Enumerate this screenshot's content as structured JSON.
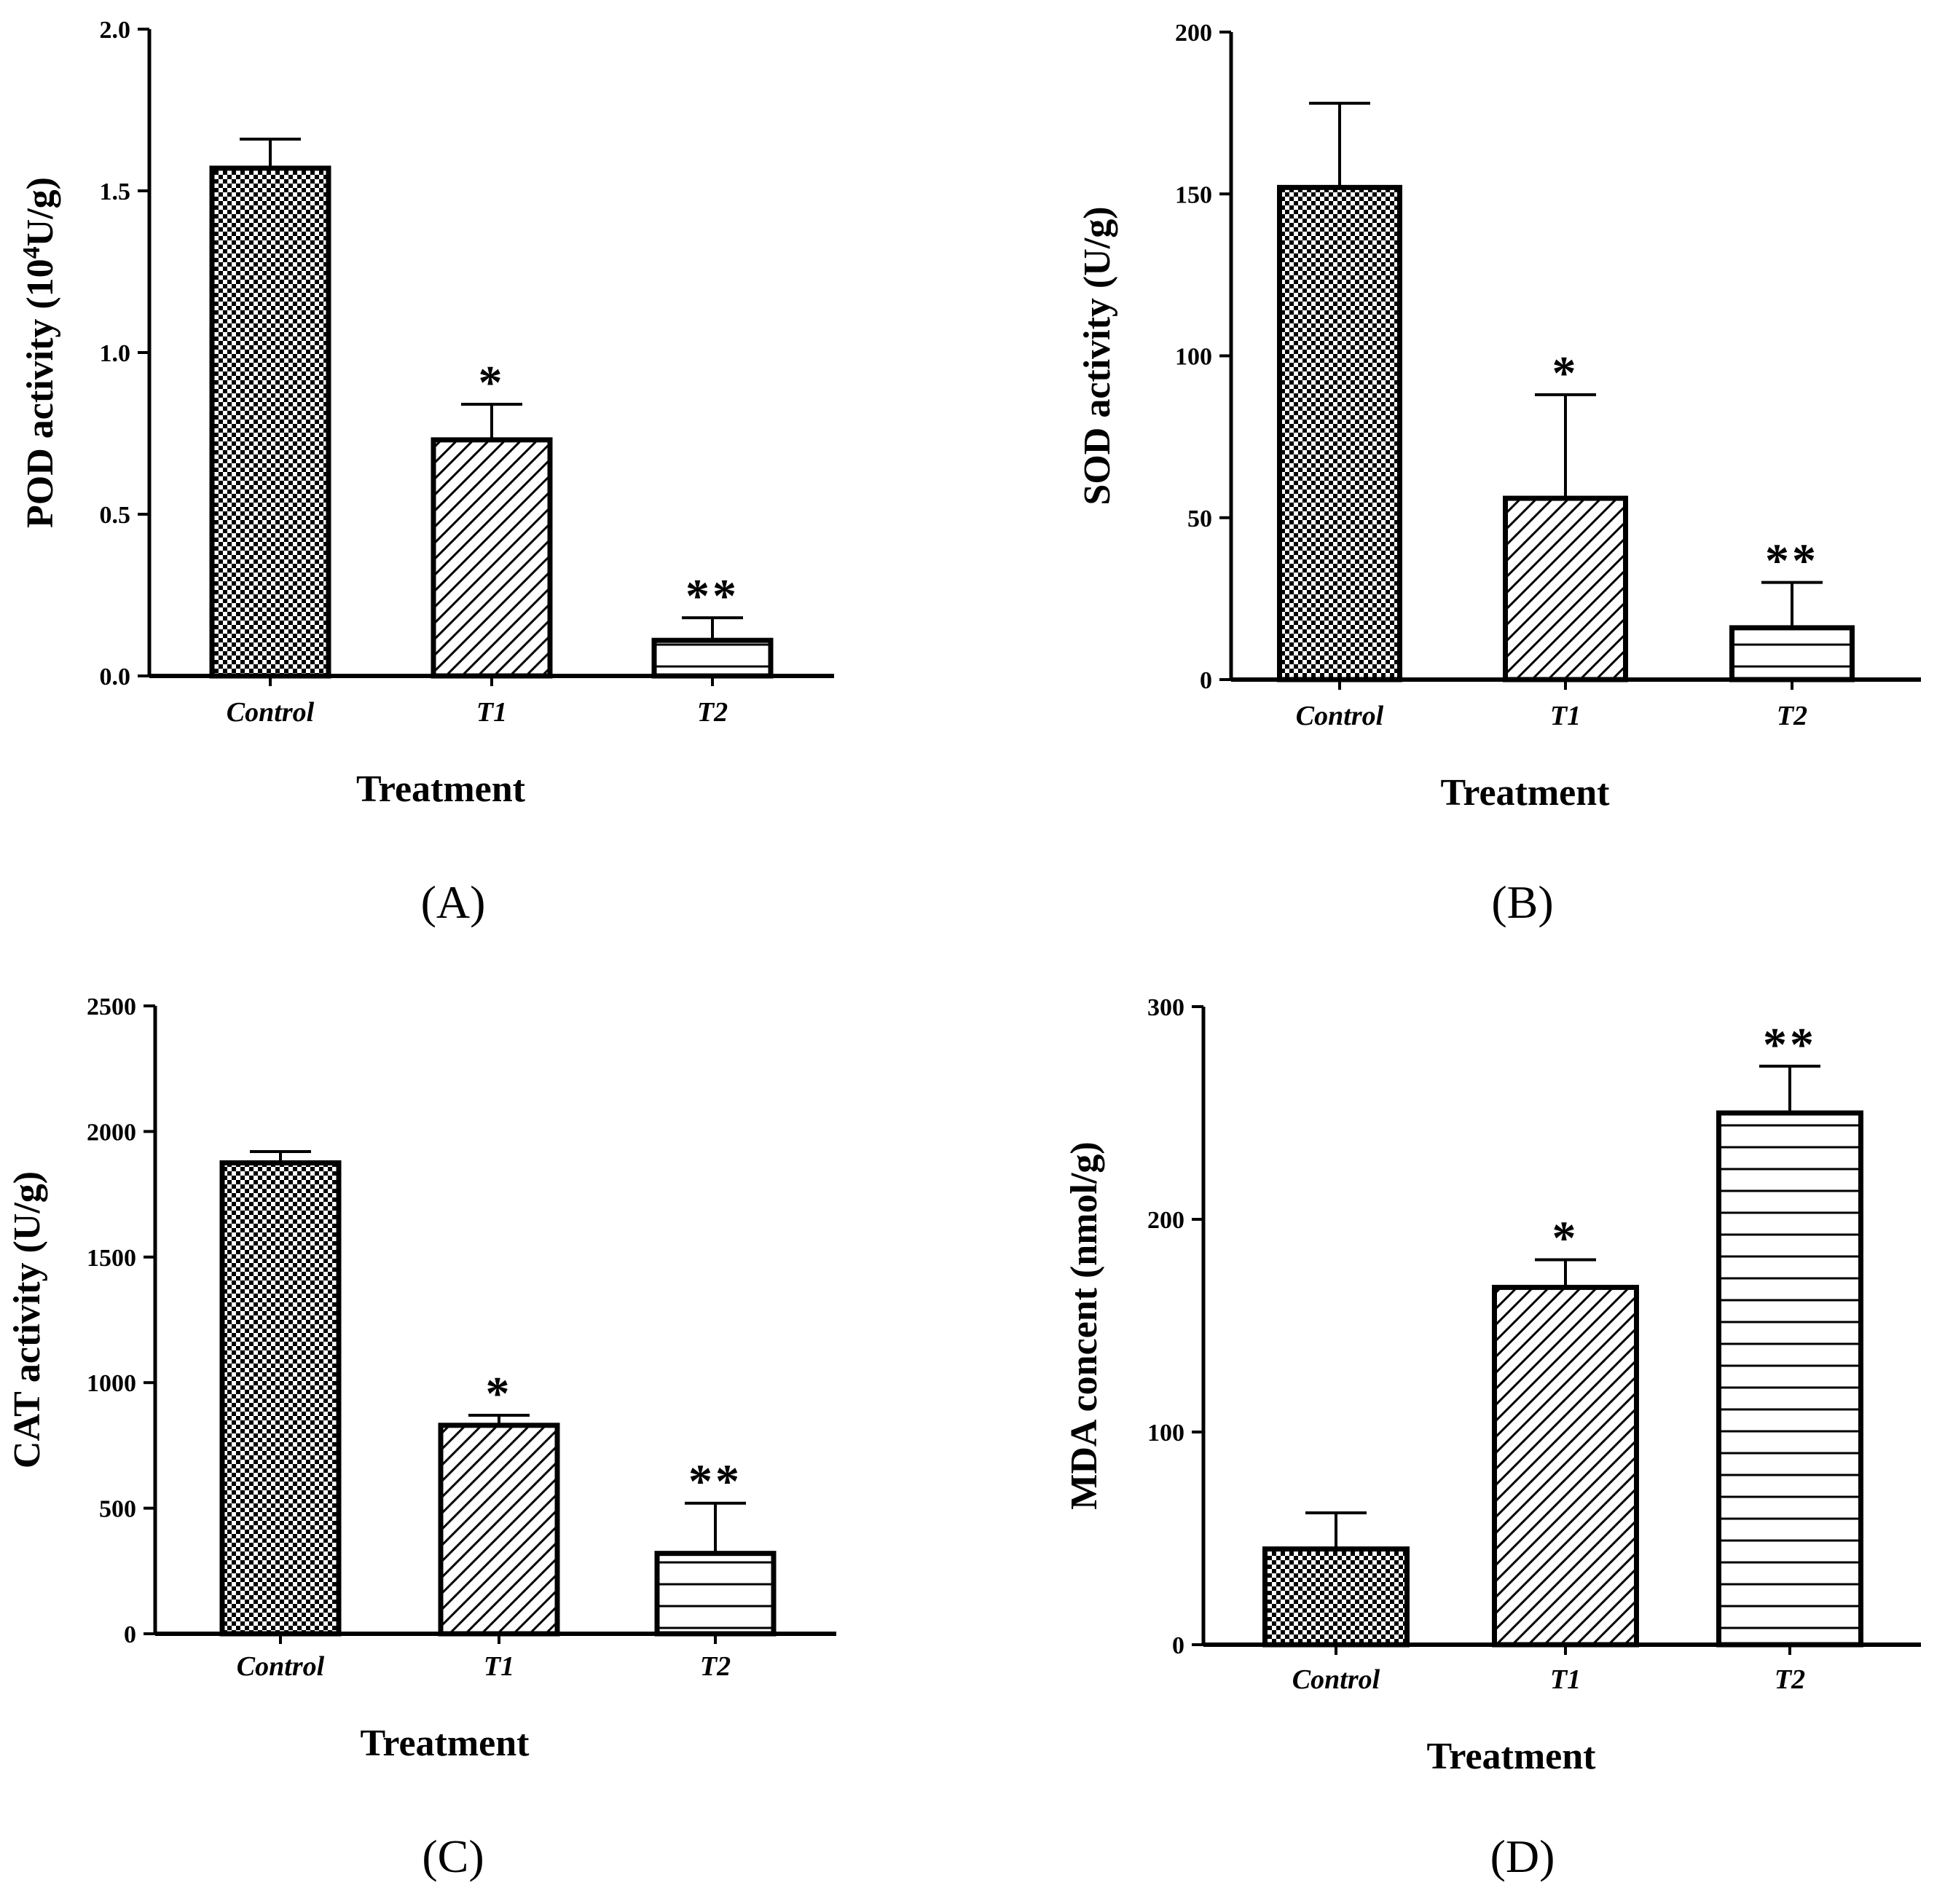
{
  "chart_data": [
    {
      "type": "bar",
      "panel_label": "(A)",
      "categories": [
        "Control",
        "T1",
        "T2"
      ],
      "values": [
        1.57,
        0.73,
        0.11
      ],
      "errors": [
        0.09,
        0.11,
        0.07
      ],
      "significance": [
        "",
        "*",
        "**"
      ],
      "patterns": [
        "checker",
        "diagonal",
        "horizontal"
      ],
      "xlabel": "Treatment",
      "ylabel_main": "POD activity (10",
      "ylabel_sup": "4",
      "ylabel_end": "U/g)",
      "ylim": [
        0,
        2.0
      ],
      "yticks": [
        "0.0",
        "0.5",
        "1.0",
        "1.5",
        "2.0"
      ],
      "ytick_values": [
        0,
        0.5,
        1.0,
        1.5,
        2.0
      ],
      "grid": false
    },
    {
      "type": "bar",
      "panel_label": "(B)",
      "categories": [
        "Control",
        "T1",
        "T2"
      ],
      "values": [
        152,
        56,
        16
      ],
      "errors": [
        26,
        32,
        14
      ],
      "significance": [
        "",
        "*",
        "**"
      ],
      "patterns": [
        "checker",
        "diagonal",
        "horizontal"
      ],
      "xlabel": "Treatment",
      "ylabel": "SOD activity (U/g)",
      "ylim": [
        0,
        200
      ],
      "yticks": [
        "0",
        "50",
        "100",
        "150",
        "200"
      ],
      "ytick_values": [
        0,
        50,
        100,
        150,
        200
      ],
      "grid": false
    },
    {
      "type": "bar",
      "panel_label": "(C)",
      "categories": [
        "Control",
        "T1",
        "T2"
      ],
      "values": [
        1875,
        830,
        320
      ],
      "errors": [
        45,
        40,
        200
      ],
      "significance": [
        "",
        "*",
        "**"
      ],
      "patterns": [
        "checker",
        "diagonal",
        "horizontal"
      ],
      "xlabel": "Treatment",
      "ylabel": "CAT activity (U/g)",
      "ylim": [
        0,
        2500
      ],
      "yticks": [
        "0",
        "500",
        "1000",
        "1500",
        "2000",
        "2500"
      ],
      "ytick_values": [
        0,
        500,
        1000,
        1500,
        2000,
        2500
      ],
      "grid": false
    },
    {
      "type": "bar",
      "panel_label": "(D)",
      "categories": [
        "Control",
        "T1",
        "T2"
      ],
      "values": [
        45,
        168,
        250
      ],
      "errors": [
        17,
        13,
        22
      ],
      "significance": [
        "",
        "*",
        "**"
      ],
      "patterns": [
        "checker",
        "diagonal",
        "horizontal"
      ],
      "xlabel": "Treatment",
      "ylabel": "MDA concent (nmol/g)",
      "ylim": [
        0,
        300
      ],
      "yticks": [
        "0",
        "100",
        "200",
        "300"
      ],
      "ytick_values": [
        0,
        100,
        200,
        300
      ],
      "grid": false
    }
  ]
}
